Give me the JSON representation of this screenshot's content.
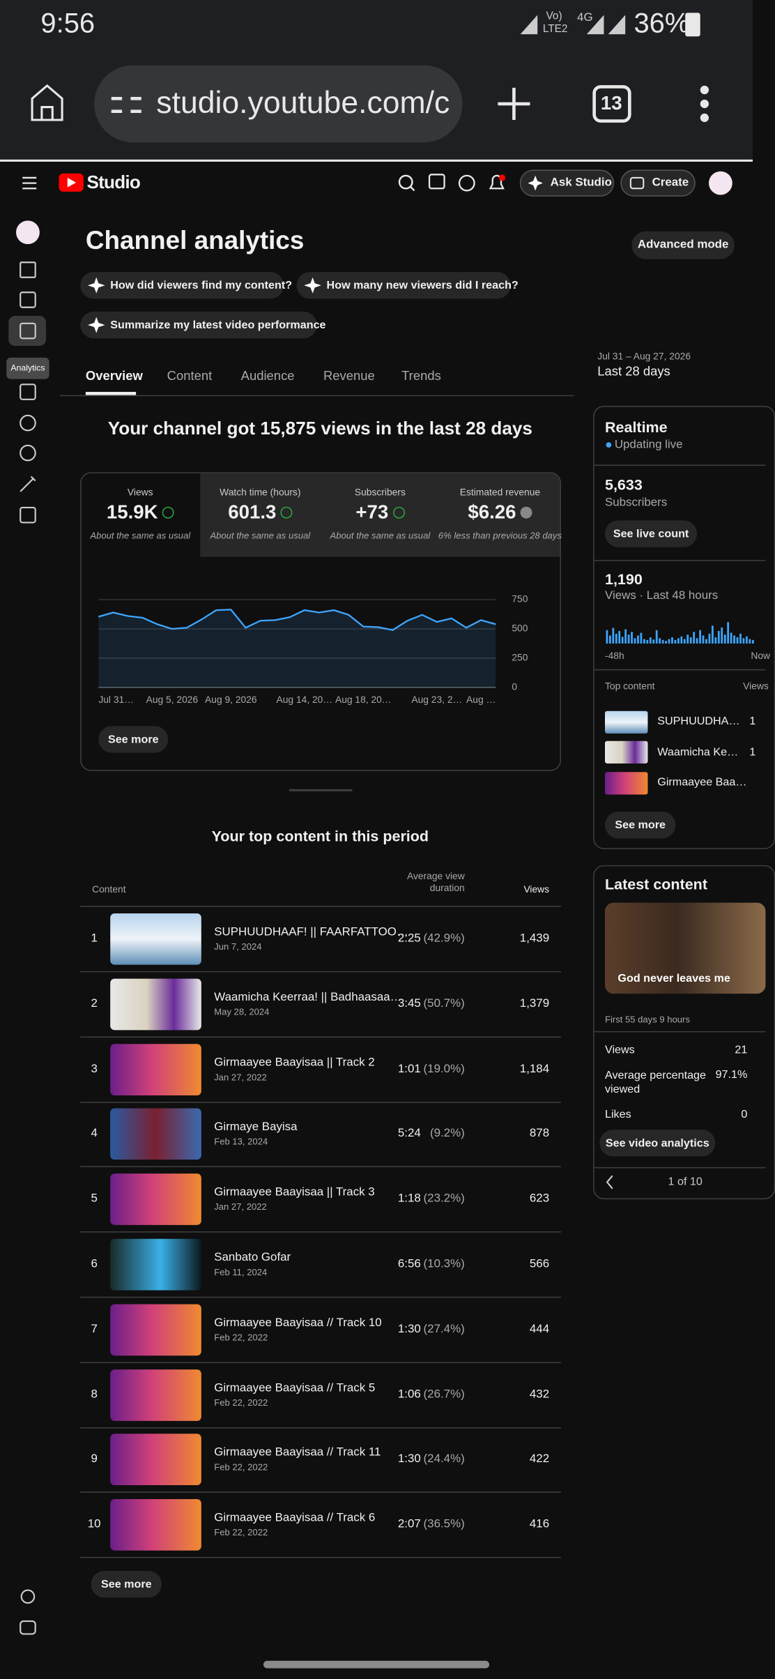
{
  "status_bar": {
    "time": "9:56",
    "volte": "Vo)",
    "lte": "LTE2",
    "network": "4G",
    "battery": "36%"
  },
  "browser": {
    "url": "studio.youtube.com/c",
    "tab_count": "13"
  },
  "header": {
    "logo": "Studio",
    "ask_studio": "Ask Studio",
    "create": "Create"
  },
  "sidebar": {
    "tooltip": "Analytics"
  },
  "page": {
    "title": "Channel analytics",
    "advanced_mode": "Advanced mode",
    "prompts": [
      "How did viewers find my content?",
      "How many new viewers did I reach?",
      "Summarize my latest video performance"
    ],
    "date_range": "Jul 31 – Aug 27, 2026",
    "period": "Last 28 days",
    "tabs": [
      "Overview",
      "Content",
      "Audience",
      "Revenue",
      "Trends"
    ],
    "headline": "Your channel got 15,875 views in the last 28 days",
    "see_more": "See more"
  },
  "metrics": [
    {
      "label": "Views",
      "value": "15.9K",
      "note": "About the same as usual"
    },
    {
      "label": "Watch time (hours)",
      "value": "601.3",
      "note": "About the same as usual"
    },
    {
      "label": "Subscribers",
      "value": "+73",
      "note": "About the same as usual"
    },
    {
      "label": "Estimated revenue",
      "value": "$6.26",
      "note": "6% less than previous 28 days"
    }
  ],
  "chart_data": [
    {
      "type": "line",
      "color": "#3ea6ff",
      "grid": true,
      "categories": [
        "Jul 31…",
        null,
        null,
        null,
        null,
        "Aug 5, 2026",
        null,
        null,
        null,
        "Aug 9, 2026",
        null,
        null,
        null,
        null,
        "Aug 14, 20…",
        null,
        null,
        null,
        "Aug 18, 20…",
        null,
        null,
        null,
        null,
        "Aug 23, 2…",
        null,
        null,
        "Aug …",
        null
      ],
      "values": [
        604,
        640,
        610,
        595,
        540,
        500,
        510,
        580,
        660,
        665,
        510,
        570,
        575,
        600,
        660,
        640,
        660,
        620,
        520,
        515,
        490,
        570,
        620,
        560,
        590,
        510,
        575,
        540
      ],
      "ylim": [
        0,
        750
      ],
      "yticks": [
        0,
        250,
        500,
        750
      ]
    },
    {
      "type": "bar",
      "color": "#3ea6ff",
      "categories": [
        "-48h",
        null,
        null,
        null,
        null,
        null,
        null,
        null,
        null,
        null,
        null,
        null,
        null,
        null,
        null,
        null,
        null,
        null,
        null,
        null,
        null,
        null,
        null,
        null,
        null,
        null,
        null,
        null,
        null,
        null,
        null,
        null,
        null,
        null,
        null,
        null,
        null,
        null,
        null,
        null,
        null,
        null,
        null,
        null,
        null,
        null,
        null,
        "Now"
      ],
      "values": [
        30,
        18,
        35,
        22,
        28,
        15,
        32,
        20,
        26,
        12,
        18,
        24,
        10,
        8,
        14,
        9,
        30,
        12,
        8,
        6,
        10,
        14,
        8,
        12,
        16,
        10,
        20,
        14,
        26,
        12,
        30,
        18,
        10,
        22,
        40,
        14,
        28,
        36,
        20,
        48,
        24,
        18,
        14,
        22,
        12,
        16,
        10,
        8
      ]
    }
  ],
  "top_content": {
    "title": "Your top content in this period",
    "columns": [
      "Content",
      "Average view duration",
      "Views"
    ],
    "rows": [
      {
        "rank": "1",
        "title": "SUPHUUDHAAF! || FAARFATTOO…",
        "date": "Jun 7, 2024",
        "duration": "2:25",
        "percent": "(42.9%)",
        "views": "1,439"
      },
      {
        "rank": "2",
        "title": "Waamicha Keerraa! || Badhaasaa…",
        "date": "May 28, 2024",
        "duration": "3:45",
        "percent": "(50.7%)",
        "views": "1,379"
      },
      {
        "rank": "3",
        "title": "Girmaayee Baayisaa || Track 2",
        "date": "Jan 27, 2022",
        "duration": "1:01",
        "percent": "(19.0%)",
        "views": "1,184"
      },
      {
        "rank": "4",
        "title": "Girmaye Bayisa",
        "date": "Feb 13, 2024",
        "duration": "5:24",
        "percent": "(9.2%)",
        "views": "878"
      },
      {
        "rank": "5",
        "title": "Girmaayee Baayisaa || Track 3",
        "date": "Jan 27, 2022",
        "duration": "1:18",
        "percent": "(23.2%)",
        "views": "623"
      },
      {
        "rank": "6",
        "title": "Sanbato Gofar",
        "date": "Feb 11, 2024",
        "duration": "6:56",
        "percent": "(10.3%)",
        "views": "566"
      },
      {
        "rank": "7",
        "title": "Girmaayee Baayisaa // Track 10",
        "date": "Feb 22, 2022",
        "duration": "1:30",
        "percent": "(27.4%)",
        "views": "444"
      },
      {
        "rank": "8",
        "title": "Girmaayee Baayisaa // Track 5",
        "date": "Feb 22, 2022",
        "duration": "1:06",
        "percent": "(26.7%)",
        "views": "432"
      },
      {
        "rank": "9",
        "title": "Girmaayee Baayisaa // Track 11",
        "date": "Feb 22, 2022",
        "duration": "1:30",
        "percent": "(24.4%)",
        "views": "422"
      },
      {
        "rank": "10",
        "title": "Girmaayee Baayisaa // Track 6",
        "date": "Feb 22, 2022",
        "duration": "2:07",
        "percent": "(36.5%)",
        "views": "416"
      }
    ],
    "see_more": "See more"
  },
  "realtime": {
    "title": "Realtime",
    "status": "Updating live",
    "subscribers": "5,633",
    "subscribers_label": "Subscribers",
    "live_button": "See live count",
    "views": "1,190",
    "views_label": "Views · Last 48 hours",
    "top_content_label": "Top content",
    "views_column": "Views",
    "items": [
      {
        "title": "SUPHUUDHA…",
        "views": "1"
      },
      {
        "title": "Waamicha Ke…",
        "views": "1"
      },
      {
        "title": "Girmaayee Baa…"
      }
    ],
    "see_more": "See more"
  },
  "latest_content": {
    "title": "Latest content",
    "video": "God never leaves me",
    "period": "First 55 days 9 hours",
    "stats": [
      {
        "label": "Views",
        "value": "21"
      },
      {
        "label": "Average percentage viewed",
        "value": "97.1%"
      },
      {
        "label": "Likes",
        "value": "0"
      }
    ],
    "button": "See video analytics",
    "pager": "1 of 10"
  }
}
